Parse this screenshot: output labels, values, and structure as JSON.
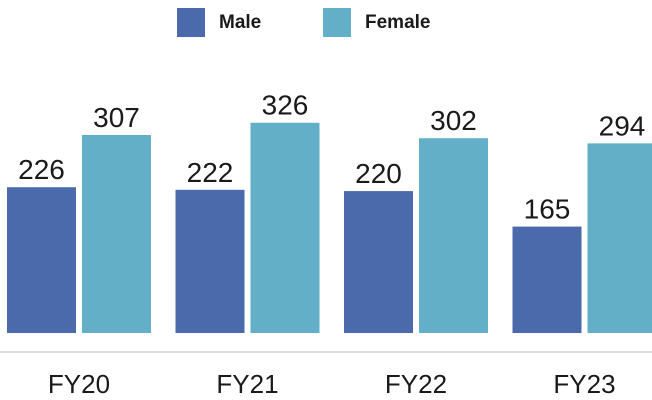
{
  "chart_data": {
    "type": "bar",
    "categories": [
      "FY20",
      "FY21",
      "FY22",
      "FY23"
    ],
    "series": [
      {
        "name": "Male",
        "color": "#4a6aab",
        "values": [
          226,
          222,
          220,
          165
        ]
      },
      {
        "name": "Female",
        "color": "#63afc8",
        "values": [
          307,
          326,
          302,
          294
        ]
      }
    ],
    "legend": "top"
  }
}
